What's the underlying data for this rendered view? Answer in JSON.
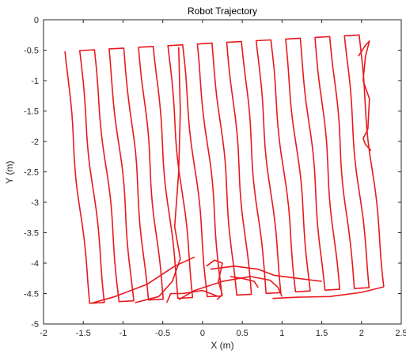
{
  "colors": {
    "trajectory": "#e8191e",
    "axis": "#262626",
    "background": "#ffffff"
  },
  "chart_data": {
    "type": "line",
    "title": "Robot Trajectory",
    "xlabel": "X (m)",
    "ylabel": "Y (m)",
    "xlim": [
      -2,
      2.5
    ],
    "ylim": [
      -5,
      0
    ],
    "xticks": [
      -2,
      -1.5,
      -1,
      -0.5,
      0,
      0.5,
      1,
      1.5,
      2,
      2.5
    ],
    "xtick_labels": [
      "-2",
      "-1.5",
      "-1",
      "-0.5",
      "0",
      "0.5",
      "1",
      "1.5",
      "2",
      "2.5"
    ],
    "yticks": [
      0,
      -0.5,
      -1,
      -1.5,
      -2,
      -2.5,
      -3,
      -3.5,
      -4,
      -4.5,
      -5
    ],
    "ytick_labels": [
      "0",
      "-0.5",
      "-1",
      "-1.5",
      "-2",
      "-2.5",
      "-3",
      "-3.5",
      "-4",
      "-4.5",
      "-5"
    ],
    "grid": false,
    "boustrophedon": {
      "top_left": [
        -1.73,
        -0.52
      ],
      "top_right": [
        1.97,
        -0.25
      ],
      "bottom_right": [
        2.28,
        -4.39
      ],
      "bottom_left": [
        -1.42,
        -4.66
      ],
      "passes": 20,
      "wiggle": 0.02
    },
    "extra_segments": [
      [
        [
          -0.85,
          -4.65
        ],
        [
          -0.55,
          -4.55
        ],
        [
          -0.38,
          -4.3
        ],
        [
          -0.28,
          -3.93
        ],
        [
          -0.35,
          -3.4
        ],
        [
          -0.3,
          -2.5
        ],
        [
          -0.28,
          -1.5
        ],
        [
          -0.3,
          -0.45
        ]
      ],
      [
        [
          -1.4,
          -4.66
        ],
        [
          -1.1,
          -4.55
        ],
        [
          -0.7,
          -4.35
        ],
        [
          -0.35,
          -4.05
        ],
        [
          -0.1,
          -3.9
        ]
      ],
      [
        [
          -0.45,
          -4.65
        ],
        [
          -0.4,
          -4.5
        ],
        [
          -0.25,
          -4.5
        ],
        [
          0.0,
          -4.45
        ],
        [
          0.2,
          -4.55
        ]
      ],
      [
        [
          0.05,
          -4.05
        ],
        [
          0.15,
          -3.95
        ],
        [
          0.25,
          -4.0
        ],
        [
          0.2,
          -4.3
        ],
        [
          0.25,
          -4.52
        ],
        [
          0.18,
          -4.6
        ]
      ],
      [
        [
          0.1,
          -4.1
        ],
        [
          0.4,
          -4.05
        ],
        [
          0.7,
          -4.1
        ],
        [
          0.9,
          -4.2
        ],
        [
          1.2,
          -4.25
        ],
        [
          1.5,
          -4.3
        ]
      ],
      [
        [
          -0.3,
          -4.6
        ],
        [
          -0.1,
          -4.45
        ],
        [
          0.25,
          -4.3
        ],
        [
          0.6,
          -4.22
        ],
        [
          0.85,
          -4.28
        ],
        [
          0.95,
          -4.4
        ],
        [
          1.0,
          -4.55
        ]
      ],
      [
        [
          0.88,
          -4.58
        ],
        [
          1.2,
          -4.56
        ],
        [
          1.6,
          -4.55
        ],
        [
          2.0,
          -4.48
        ],
        [
          2.28,
          -4.39
        ]
      ],
      [
        [
          0.35,
          -4.22
        ],
        [
          0.5,
          -4.25
        ],
        [
          0.65,
          -4.3
        ],
        [
          0.7,
          -4.4
        ]
      ],
      [
        [
          1.96,
          -0.6
        ],
        [
          2.05,
          -0.42
        ],
        [
          2.1,
          -0.35
        ],
        [
          2.05,
          -0.6
        ],
        [
          2.02,
          -1.0
        ],
        [
          2.1,
          -1.3
        ],
        [
          2.08,
          -1.8
        ]
      ],
      [
        [
          2.08,
          -1.8
        ],
        [
          2.02,
          -1.95
        ],
        [
          2.05,
          -2.05
        ],
        [
          2.12,
          -2.15
        ]
      ]
    ]
  }
}
